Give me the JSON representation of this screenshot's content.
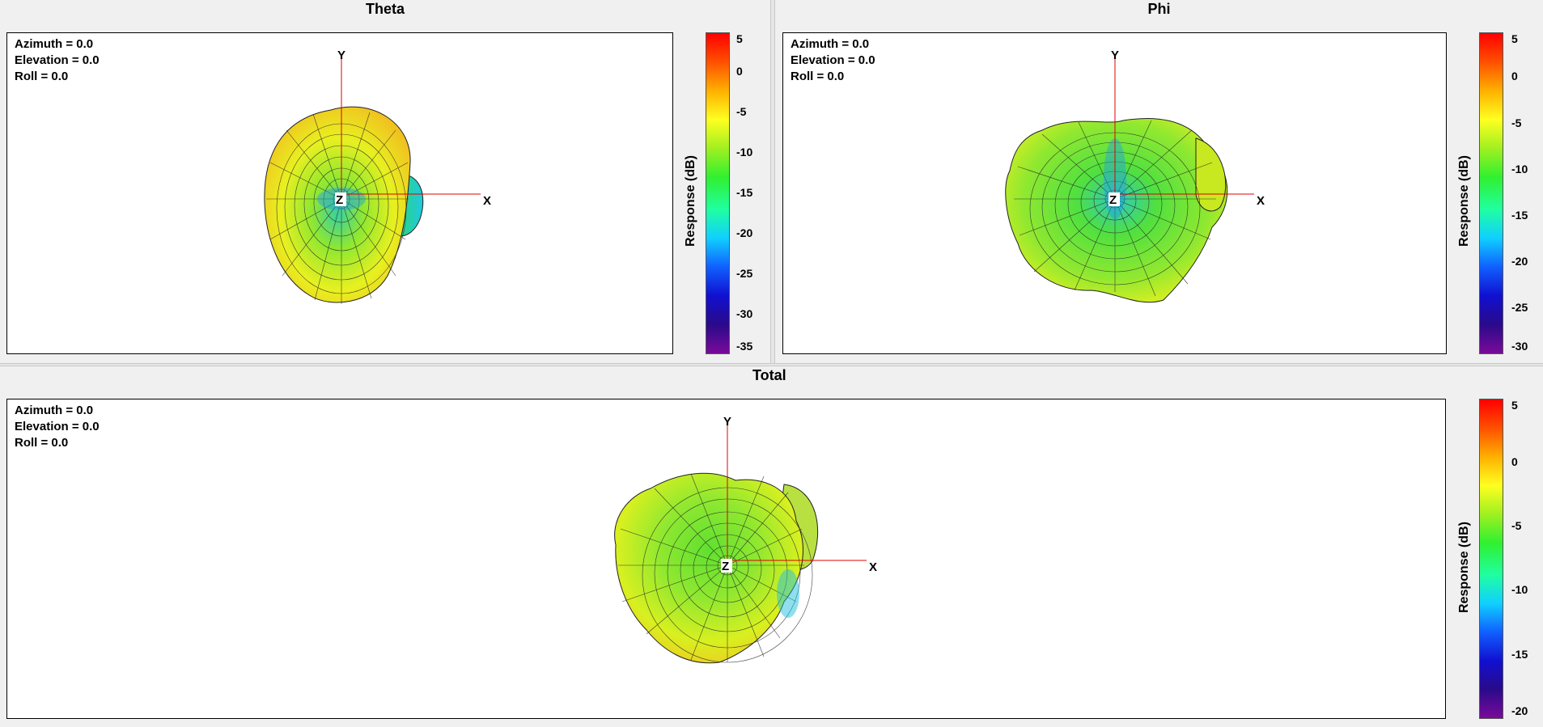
{
  "colormap": [
    "#7a0a9a",
    "#2a0a8a",
    "#1010d0",
    "#1060ff",
    "#10d0ff",
    "#20ffa0",
    "#30f030",
    "#a0f020",
    "#ffff20",
    "#ffb000",
    "#ff5000",
    "#ff0000"
  ],
  "panels": {
    "theta": {
      "title": "Theta",
      "azimuth": "Azimuth = 0.0",
      "elevation": "Elevation = 0.0",
      "roll": "Roll = 0.0",
      "axis_x": "X",
      "axis_y": "Y",
      "axis_z": "Z",
      "colorbar_label": "Response  (dB)",
      "ticks": [
        "5",
        "0",
        "-5",
        "-10",
        "-15",
        "-20",
        "-25",
        "-30",
        "-35"
      ]
    },
    "phi": {
      "title": "Phi",
      "azimuth": "Azimuth = 0.0",
      "elevation": "Elevation = 0.0",
      "roll": "Roll = 0.0",
      "axis_x": "X",
      "axis_y": "Y",
      "axis_z": "Z",
      "colorbar_label": "Response  (dB)",
      "ticks": [
        "5",
        "0",
        "-5",
        "-10",
        "-15",
        "-20",
        "-25",
        "-30"
      ]
    },
    "total": {
      "title": "Total",
      "azimuth": "Azimuth = 0.0",
      "elevation": "Elevation = 0.0",
      "roll": "Roll = 0.0",
      "axis_x": "X",
      "axis_y": "Y",
      "axis_z": "Z",
      "colorbar_label": "Response  (dB)",
      "ticks": [
        "5",
        "0",
        "-5",
        "-10",
        "-15",
        "-20"
      ]
    }
  }
}
